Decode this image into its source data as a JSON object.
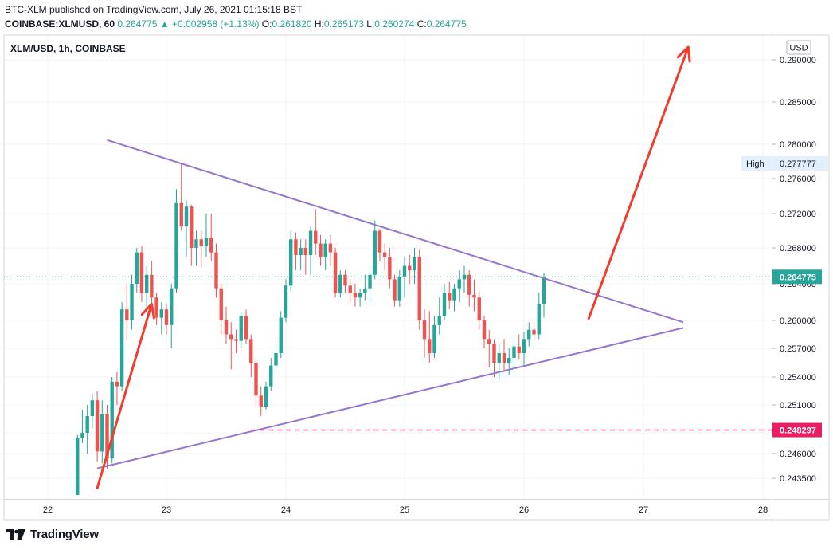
{
  "header": {
    "line1": "BTC-XLM published on TradingView.com, July 26, 2021 01:15:18 BST",
    "symbol": "COINBASE:XLMUSD, 60",
    "last": "0.264775",
    "change": "+0.002958 (+1.13%)",
    "o_label": "O:",
    "o": "0.261820",
    "h_label": "H:",
    "h": "0.265173",
    "l_label": "L:",
    "l": "0.260274",
    "c_label": "C:",
    "c": "0.264775"
  },
  "legend_title": "XLM/USD, 1h, COINBASE",
  "currency": "USD",
  "high_label": "High",
  "high_value": "0.277777",
  "last_price_label": "0.264775",
  "support_label": "0.248297",
  "brand": "TradingView",
  "colors": {
    "up": "#26a69a",
    "down": "#ef5350",
    "triangle": "#9575cd",
    "arrow": "#f23c2d",
    "support": "#e91e63",
    "lastprice": "#26a69a"
  },
  "chart_data": {
    "type": "candlestick",
    "title": "XLM/USD, 1h, COINBASE",
    "x_ticks": [
      "22",
      "23",
      "24",
      "25",
      "26",
      "27",
      "28"
    ],
    "y_ticks": [
      "0.290000",
      "0.285000",
      "0.280000",
      "0.276000",
      "0.272000",
      "0.268000",
      "0.264000",
      "0.260000",
      "0.257000",
      "0.254000",
      "0.251000",
      "0.248000",
      "0.246000",
      "0.243500"
    ],
    "candles": [
      {
        "t": "22 06:00",
        "o": 0.2418,
        "h": 0.2478,
        "l": 0.2418,
        "c": 0.2475
      },
      {
        "t": "22 07:00",
        "o": 0.2475,
        "h": 0.2505,
        "l": 0.247,
        "c": 0.248
      },
      {
        "t": "22 08:00",
        "o": 0.248,
        "h": 0.251,
        "l": 0.246,
        "c": 0.2498
      },
      {
        "t": "22 09:00",
        "o": 0.2498,
        "h": 0.2522,
        "l": 0.2485,
        "c": 0.2515
      },
      {
        "t": "22 10:00",
        "o": 0.2515,
        "h": 0.2525,
        "l": 0.2452,
        "c": 0.2462
      },
      {
        "t": "22 11:00",
        "o": 0.2462,
        "h": 0.2515,
        "l": 0.245,
        "c": 0.25
      },
      {
        "t": "22 12:00",
        "o": 0.25,
        "h": 0.251,
        "l": 0.2445,
        "c": 0.2455
      },
      {
        "t": "22 13:00",
        "o": 0.2455,
        "h": 0.254,
        "l": 0.245,
        "c": 0.2535
      },
      {
        "t": "22 14:00",
        "o": 0.2535,
        "h": 0.2545,
        "l": 0.251,
        "c": 0.253
      },
      {
        "t": "22 15:00",
        "o": 0.253,
        "h": 0.262,
        "l": 0.2525,
        "c": 0.2612
      },
      {
        "t": "22 16:00",
        "o": 0.2612,
        "h": 0.264,
        "l": 0.258,
        "c": 0.26
      },
      {
        "t": "22 17:00",
        "o": 0.26,
        "h": 0.265,
        "l": 0.259,
        "c": 0.264
      },
      {
        "t": "22 18:00",
        "o": 0.264,
        "h": 0.268,
        "l": 0.263,
        "c": 0.2675
      },
      {
        "t": "22 19:00",
        "o": 0.2675,
        "h": 0.2682,
        "l": 0.262,
        "c": 0.263
      },
      {
        "t": "22 20:00",
        "o": 0.263,
        "h": 0.266,
        "l": 0.2612,
        "c": 0.265
      },
      {
        "t": "22 21:00",
        "o": 0.265,
        "h": 0.2665,
        "l": 0.2612,
        "c": 0.2625
      },
      {
        "t": "22 22:00",
        "o": 0.2625,
        "h": 0.263,
        "l": 0.2595,
        "c": 0.2603
      },
      {
        "t": "22 23:00",
        "o": 0.2603,
        "h": 0.262,
        "l": 0.2585,
        "c": 0.2612
      },
      {
        "t": "23 00:00",
        "o": 0.2612,
        "h": 0.2618,
        "l": 0.2585,
        "c": 0.2595
      },
      {
        "t": "23 01:00",
        "o": 0.2595,
        "h": 0.264,
        "l": 0.257,
        "c": 0.2635
      },
      {
        "t": "23 02:00",
        "o": 0.2635,
        "h": 0.2748,
        "l": 0.263,
        "c": 0.2732
      },
      {
        "t": "23 03:00",
        "o": 0.2732,
        "h": 0.2778,
        "l": 0.27,
        "c": 0.2705
      },
      {
        "t": "23 04:00",
        "o": 0.2705,
        "h": 0.2735,
        "l": 0.267,
        "c": 0.2728
      },
      {
        "t": "23 05:00",
        "o": 0.2728,
        "h": 0.273,
        "l": 0.266,
        "c": 0.268
      },
      {
        "t": "23 06:00",
        "o": 0.268,
        "h": 0.27,
        "l": 0.266,
        "c": 0.269
      },
      {
        "t": "23 07:00",
        "o": 0.269,
        "h": 0.27,
        "l": 0.2658,
        "c": 0.2682
      },
      {
        "t": "23 08:00",
        "o": 0.2682,
        "h": 0.272,
        "l": 0.267,
        "c": 0.2692
      },
      {
        "t": "23 09:00",
        "o": 0.2692,
        "h": 0.272,
        "l": 0.2665,
        "c": 0.2675
      },
      {
        "t": "23 10:00",
        "o": 0.2675,
        "h": 0.2685,
        "l": 0.2625,
        "c": 0.2635
      },
      {
        "t": "23 11:00",
        "o": 0.2635,
        "h": 0.264,
        "l": 0.2585,
        "c": 0.26
      },
      {
        "t": "23 12:00",
        "o": 0.26,
        "h": 0.2615,
        "l": 0.2575,
        "c": 0.2585
      },
      {
        "t": "23 13:00",
        "o": 0.2585,
        "h": 0.2598,
        "l": 0.2548,
        "c": 0.258
      },
      {
        "t": "23 14:00",
        "o": 0.258,
        "h": 0.259,
        "l": 0.2565,
        "c": 0.2578
      },
      {
        "t": "23 15:00",
        "o": 0.2578,
        "h": 0.261,
        "l": 0.257,
        "c": 0.2605
      },
      {
        "t": "23 16:00",
        "o": 0.2605,
        "h": 0.2612,
        "l": 0.2575,
        "c": 0.258
      },
      {
        "t": "23 17:00",
        "o": 0.258,
        "h": 0.2585,
        "l": 0.254,
        "c": 0.2555
      },
      {
        "t": "23 18:00",
        "o": 0.2555,
        "h": 0.256,
        "l": 0.2508,
        "c": 0.252
      },
      {
        "t": "23 19:00",
        "o": 0.252,
        "h": 0.253,
        "l": 0.2498,
        "c": 0.2508
      },
      {
        "t": "23 20:00",
        "o": 0.2508,
        "h": 0.2535,
        "l": 0.2505,
        "c": 0.253
      },
      {
        "t": "23 21:00",
        "o": 0.253,
        "h": 0.256,
        "l": 0.2525,
        "c": 0.2552
      },
      {
        "t": "23 22:00",
        "o": 0.2552,
        "h": 0.2575,
        "l": 0.2545,
        "c": 0.2565
      },
      {
        "t": "23 23:00",
        "o": 0.2565,
        "h": 0.261,
        "l": 0.256,
        "c": 0.2603
      },
      {
        "t": "24 00:00",
        "o": 0.2603,
        "h": 0.2645,
        "l": 0.2598,
        "c": 0.2638
      },
      {
        "t": "24 01:00",
        "o": 0.2638,
        "h": 0.27,
        "l": 0.2632,
        "c": 0.269
      },
      {
        "t": "24 02:00",
        "o": 0.269,
        "h": 0.2698,
        "l": 0.2655,
        "c": 0.2672
      },
      {
        "t": "24 03:00",
        "o": 0.2672,
        "h": 0.269,
        "l": 0.2655,
        "c": 0.268
      },
      {
        "t": "24 04:00",
        "o": 0.268,
        "h": 0.269,
        "l": 0.265,
        "c": 0.2672
      },
      {
        "t": "24 05:00",
        "o": 0.2672,
        "h": 0.2705,
        "l": 0.265,
        "c": 0.27
      },
      {
        "t": "24 06:00",
        "o": 0.27,
        "h": 0.2725,
        "l": 0.2672,
        "c": 0.2685
      },
      {
        "t": "24 07:00",
        "o": 0.2685,
        "h": 0.2695,
        "l": 0.266,
        "c": 0.267
      },
      {
        "t": "24 08:00",
        "o": 0.267,
        "h": 0.269,
        "l": 0.2655,
        "c": 0.2685
      },
      {
        "t": "24 09:00",
        "o": 0.2685,
        "h": 0.2695,
        "l": 0.266,
        "c": 0.2675
      },
      {
        "t": "24 10:00",
        "o": 0.2675,
        "h": 0.268,
        "l": 0.2625,
        "c": 0.263
      },
      {
        "t": "24 11:00",
        "o": 0.263,
        "h": 0.2655,
        "l": 0.2625,
        "c": 0.265
      },
      {
        "t": "24 12:00",
        "o": 0.265,
        "h": 0.2655,
        "l": 0.263,
        "c": 0.2638
      },
      {
        "t": "24 13:00",
        "o": 0.2638,
        "h": 0.2645,
        "l": 0.262,
        "c": 0.263
      },
      {
        "t": "24 14:00",
        "o": 0.263,
        "h": 0.264,
        "l": 0.2615,
        "c": 0.2625
      },
      {
        "t": "24 15:00",
        "o": 0.2625,
        "h": 0.2635,
        "l": 0.2615,
        "c": 0.263
      },
      {
        "t": "24 16:00",
        "o": 0.263,
        "h": 0.265,
        "l": 0.2622,
        "c": 0.2635
      },
      {
        "t": "24 17:00",
        "o": 0.2635,
        "h": 0.266,
        "l": 0.262,
        "c": 0.265
      },
      {
        "t": "24 18:00",
        "o": 0.265,
        "h": 0.2712,
        "l": 0.2645,
        "c": 0.27
      },
      {
        "t": "24 19:00",
        "o": 0.27,
        "h": 0.2702,
        "l": 0.2665,
        "c": 0.2675
      },
      {
        "t": "24 20:00",
        "o": 0.2675,
        "h": 0.2685,
        "l": 0.2655,
        "c": 0.267
      },
      {
        "t": "24 21:00",
        "o": 0.267,
        "h": 0.268,
        "l": 0.2635,
        "c": 0.2645
      },
      {
        "t": "24 22:00",
        "o": 0.2645,
        "h": 0.265,
        "l": 0.2615,
        "c": 0.2622
      },
      {
        "t": "24 23:00",
        "o": 0.2622,
        "h": 0.2655,
        "l": 0.2615,
        "c": 0.2648
      },
      {
        "t": "25 00:00",
        "o": 0.2648,
        "h": 0.267,
        "l": 0.2625,
        "c": 0.266
      },
      {
        "t": "25 01:00",
        "o": 0.266,
        "h": 0.2672,
        "l": 0.264,
        "c": 0.2655
      },
      {
        "t": "25 02:00",
        "o": 0.2655,
        "h": 0.268,
        "l": 0.264,
        "c": 0.267
      },
      {
        "t": "25 03:00",
        "o": 0.267,
        "h": 0.2678,
        "l": 0.259,
        "c": 0.26
      },
      {
        "t": "25 04:00",
        "o": 0.26,
        "h": 0.2612,
        "l": 0.256,
        "c": 0.258
      },
      {
        "t": "25 05:00",
        "o": 0.258,
        "h": 0.261,
        "l": 0.2555,
        "c": 0.2565
      },
      {
        "t": "25 06:00",
        "o": 0.2565,
        "h": 0.2605,
        "l": 0.256,
        "c": 0.2595
      },
      {
        "t": "25 07:00",
        "o": 0.2595,
        "h": 0.2625,
        "l": 0.2585,
        "c": 0.2605
      },
      {
        "t": "25 08:00",
        "o": 0.2605,
        "h": 0.264,
        "l": 0.26,
        "c": 0.263
      },
      {
        "t": "25 09:00",
        "o": 0.263,
        "h": 0.2642,
        "l": 0.2612,
        "c": 0.2622
      },
      {
        "t": "25 10:00",
        "o": 0.2622,
        "h": 0.264,
        "l": 0.261,
        "c": 0.2635
      },
      {
        "t": "25 11:00",
        "o": 0.2635,
        "h": 0.2655,
        "l": 0.262,
        "c": 0.2645
      },
      {
        "t": "25 12:00",
        "o": 0.2645,
        "h": 0.266,
        "l": 0.263,
        "c": 0.265
      },
      {
        "t": "25 13:00",
        "o": 0.265,
        "h": 0.2655,
        "l": 0.2615,
        "c": 0.2628
      },
      {
        "t": "25 14:00",
        "o": 0.2628,
        "h": 0.2645,
        "l": 0.261,
        "c": 0.2625
      },
      {
        "t": "25 15:00",
        "o": 0.2625,
        "h": 0.2632,
        "l": 0.259,
        "c": 0.26
      },
      {
        "t": "25 16:00",
        "o": 0.26,
        "h": 0.2605,
        "l": 0.257,
        "c": 0.258
      },
      {
        "t": "25 17:00",
        "o": 0.258,
        "h": 0.259,
        "l": 0.255,
        "c": 0.2575
      },
      {
        "t": "25 18:00",
        "o": 0.2575,
        "h": 0.258,
        "l": 0.254,
        "c": 0.2555
      },
      {
        "t": "25 19:00",
        "o": 0.2555,
        "h": 0.2575,
        "l": 0.2538,
        "c": 0.2565
      },
      {
        "t": "25 20:00",
        "o": 0.2565,
        "h": 0.258,
        "l": 0.2545,
        "c": 0.2555
      },
      {
        "t": "25 21:00",
        "o": 0.2555,
        "h": 0.257,
        "l": 0.2542,
        "c": 0.256
      },
      {
        "t": "25 22:00",
        "o": 0.256,
        "h": 0.2578,
        "l": 0.2545,
        "c": 0.2572
      },
      {
        "t": "25 23:00",
        "o": 0.2572,
        "h": 0.2585,
        "l": 0.2558,
        "c": 0.2565
      },
      {
        "t": "26 00:00",
        "o": 0.2565,
        "h": 0.2588,
        "l": 0.2552,
        "c": 0.258
      },
      {
        "t": "26 01:00",
        "o": 0.258,
        "h": 0.2598,
        "l": 0.2572,
        "c": 0.259
      },
      {
        "t": "26 02:00",
        "o": 0.259,
        "h": 0.2598,
        "l": 0.2578,
        "c": 0.2585
      },
      {
        "t": "26 03:00",
        "o": 0.2585,
        "h": 0.263,
        "l": 0.258,
        "c": 0.2618
      },
      {
        "t": "26 04:00",
        "o": 0.2618,
        "h": 0.2652,
        "l": 0.2603,
        "c": 0.2648
      }
    ],
    "trendlines": [
      {
        "name": "upper",
        "from": {
          "t": "22 12:00",
          "price": 0.2805
        },
        "to": {
          "t": "27 08:00",
          "price": 0.2598
        }
      },
      {
        "name": "lower",
        "from": {
          "t": "22 10:00",
          "price": 0.2445
        },
        "to": {
          "t": "27 08:00",
          "price": 0.2592
        }
      }
    ],
    "arrows": [
      {
        "from": {
          "t": "22 10:00",
          "price": 0.2425
        },
        "to": {
          "t": "22 21:00",
          "price": 0.2618
        }
      },
      {
        "from": {
          "t": "26 13:00",
          "price": 0.2602
        },
        "to": {
          "t": "27 09:00",
          "price": 0.2915
        }
      }
    ],
    "support_level": 0.248297,
    "last_price": 0.264775,
    "high": 0.277777
  }
}
